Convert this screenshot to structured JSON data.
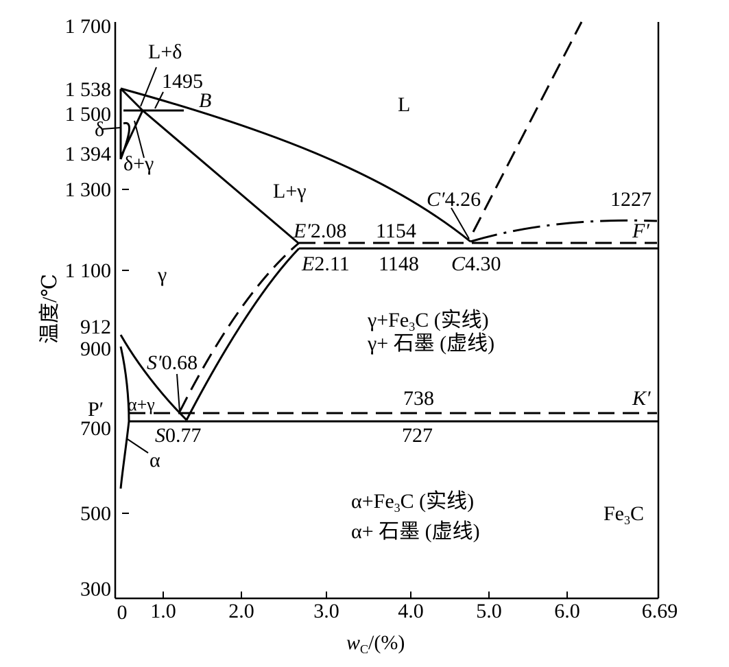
{
  "axes": {
    "y_label": "温度/℃",
    "x_label_main": "w",
    "x_label_sub": "C",
    "x_label_unit": "/(%)",
    "y_ticks": [
      {
        "value": 1700,
        "label": "1 700"
      },
      {
        "value": 1538,
        "label": "1 538"
      },
      {
        "value": 1500,
        "label": "1 500"
      },
      {
        "value": 1394,
        "label": "1 394"
      },
      {
        "value": 1300,
        "label": "1 300"
      },
      {
        "value": 1100,
        "label": "1 100"
      },
      {
        "value": 912,
        "label": "912"
      },
      {
        "value": 900,
        "label": "900"
      },
      {
        "value": 700,
        "label": "700"
      },
      {
        "value": 500,
        "label": "500"
      },
      {
        "value": 300,
        "label": "300"
      }
    ],
    "x_ticks": [
      {
        "value": 0,
        "label": "0"
      },
      {
        "value": 1.0,
        "label": "1.0"
      },
      {
        "value": 2.0,
        "label": "2.0"
      },
      {
        "value": 3.0,
        "label": "3.0"
      },
      {
        "value": 4.0,
        "label": "4.0"
      },
      {
        "value": 5.0,
        "label": "5.0"
      },
      {
        "value": 6.0,
        "label": "6.0"
      },
      {
        "value": 6.69,
        "label": "6.69"
      }
    ]
  },
  "regions": {
    "liquid": "L",
    "l_delta": "L+δ",
    "delta": "δ",
    "delta_gamma": "δ+γ",
    "l_gamma": "L+γ",
    "gamma": "γ",
    "gamma_fe3c_1": "γ+Fe",
    "gamma_fe3c_2": "C (实线)",
    "gamma_graphite": "γ+ 石墨 (虚线)",
    "alpha_gamma": "α+γ",
    "alpha": "α",
    "alpha_fe3c_1": "α+Fe",
    "alpha_fe3c_2": "C (实线)",
    "alpha_graphite": "α+ 石墨 (虚线)",
    "fe3c_main": "Fe",
    "fe3c_tail": "C",
    "sub3": "3"
  },
  "points": {
    "t1495": "1495",
    "B": "B",
    "C_prime": "C′",
    "C_prime_val": "4.26",
    "t1227": "1227",
    "E_prime": "E′",
    "E_prime_val": "2.08",
    "t1154": "1154",
    "F_prime": "F′",
    "E": "E",
    "E_val": "2.11",
    "t1148": "1148",
    "C": "C",
    "C_val": "4.30",
    "S_prime": "S′",
    "S_prime_val": "0.68",
    "P_prime": "P′",
    "t738": "738",
    "K_prime": "K′",
    "S": "S",
    "S_val": "0.77",
    "t727": "727"
  }
}
